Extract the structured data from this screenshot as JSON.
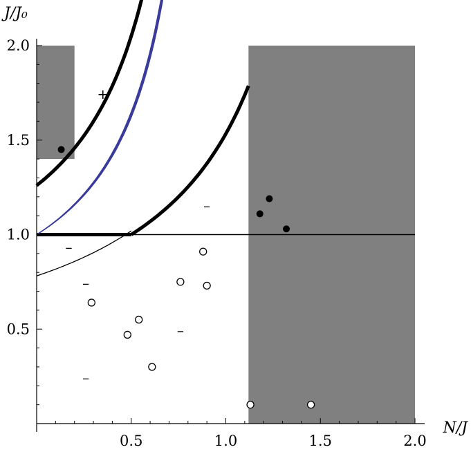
{
  "chart_data": {
    "type": "scatter",
    "title": "",
    "xlabel": "N/J",
    "ylabel": "J/J₀",
    "xlim": [
      0,
      2
    ],
    "ylim": [
      0,
      2
    ],
    "x_ticks": [
      "0.5",
      "1.0",
      "1.5",
      "2.0"
    ],
    "y_ticks": [
      "0.5",
      "1.0",
      "1.5",
      "2.0"
    ],
    "x_tick_values": [
      0.5,
      1.0,
      1.5,
      2.0
    ],
    "y_tick_values": [
      0.5,
      1.0,
      1.5,
      2.0
    ],
    "shaded_regions": [
      {
        "x": [
          0,
          0.2
        ],
        "y": [
          1.4,
          2.0
        ],
        "color": "#808080"
      },
      {
        "x": [
          1.12,
          2.0
        ],
        "y": [
          0,
          2.0
        ],
        "color": "#808080"
      }
    ],
    "horizontal_line": {
      "y": 1.0
    },
    "thick_segment": {
      "x": [
        0,
        0.5
      ],
      "y": 1.0
    },
    "filled_points": [
      {
        "x": 0.13,
        "y": 1.45
      },
      {
        "x": 1.18,
        "y": 1.11
      },
      {
        "x": 1.23,
        "y": 1.19
      },
      {
        "x": 1.32,
        "y": 1.03
      }
    ],
    "open_points": [
      {
        "x": 0.29,
        "y": 0.64
      },
      {
        "x": 0.48,
        "y": 0.47
      },
      {
        "x": 0.54,
        "y": 0.55
      },
      {
        "x": 0.61,
        "y": 0.3
      },
      {
        "x": 0.76,
        "y": 0.75
      },
      {
        "x": 0.88,
        "y": 0.91
      },
      {
        "x": 0.9,
        "y": 0.73
      },
      {
        "x": 1.13,
        "y": 0.1
      },
      {
        "x": 1.45,
        "y": 0.1
      }
    ],
    "sign_labels": [
      {
        "text": "+",
        "x": 0.35,
        "y": 1.74
      },
      {
        "text": "–",
        "x": 0.9,
        "y": 1.15
      },
      {
        "text": "–",
        "x": 0.17,
        "y": 0.93
      },
      {
        "text": "–",
        "x": 0.26,
        "y": 0.74
      },
      {
        "text": "–",
        "x": 0.76,
        "y": 0.49
      },
      {
        "text": "–",
        "x": 0.26,
        "y": 0.24
      }
    ],
    "colors": {
      "shade": "#808080",
      "curves_thick": "#000000",
      "curves_thin_blue": "#3a3a9a",
      "axis": "#000000"
    }
  }
}
